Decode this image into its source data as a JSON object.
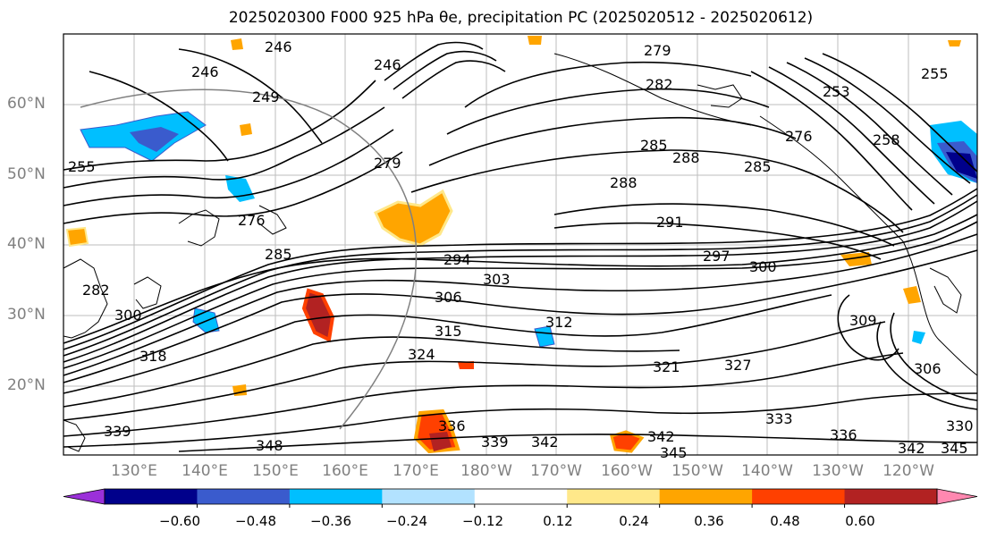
{
  "title": "2025020300 F000 925 hPa θe, precipitation PC (2025020512 - 2025020612)",
  "lat_labels": [
    "60°N",
    "50°N",
    "40°N",
    "30°N",
    "20°N"
  ],
  "lon_labels": [
    "130°E",
    "140°E",
    "150°E",
    "160°E",
    "170°E",
    "180°W",
    "170°W",
    "160°W",
    "150°W",
    "140°W",
    "130°W",
    "120°W"
  ],
  "contour_labels": [
    "246",
    "246",
    "246",
    "249",
    "279",
    "282",
    "255",
    "253",
    "279",
    "285",
    "288",
    "285",
    "276",
    "258",
    "288",
    "291",
    "297",
    "300",
    "294",
    "303",
    "306",
    "309",
    "315",
    "318",
    "324",
    "321",
    "327",
    "312",
    "306",
    "333",
    "336",
    "339",
    "342",
    "345",
    "342",
    "336",
    "342",
    "345",
    "330",
    "255",
    "276",
    "285",
    "282",
    "300",
    "348",
    "339"
  ],
  "colorbar": {
    "ticks": [
      "−0.60",
      "−0.48",
      "−0.36",
      "−0.24",
      "−0.12",
      "0.12",
      "0.24",
      "0.36",
      "0.48",
      "0.60"
    ],
    "colors": [
      "#9b30d9",
      "#00008b",
      "#3a5bcd",
      "#00bfff",
      "#b2e2ff",
      "#ffffff",
      "#ffe88a",
      "#ffa500",
      "#ff4000",
      "#b22222",
      "#ff88b0"
    ]
  },
  "map_colors": {
    "land_outline": "#000000",
    "grid": "#bdbdbd",
    "orange": "#ffa500",
    "light_orange": "#ffe88a",
    "red": "#ff4000",
    "dark_red": "#b22222",
    "cyan": "#00bfff",
    "blue": "#3a5bcd",
    "navy": "#00008b"
  }
}
